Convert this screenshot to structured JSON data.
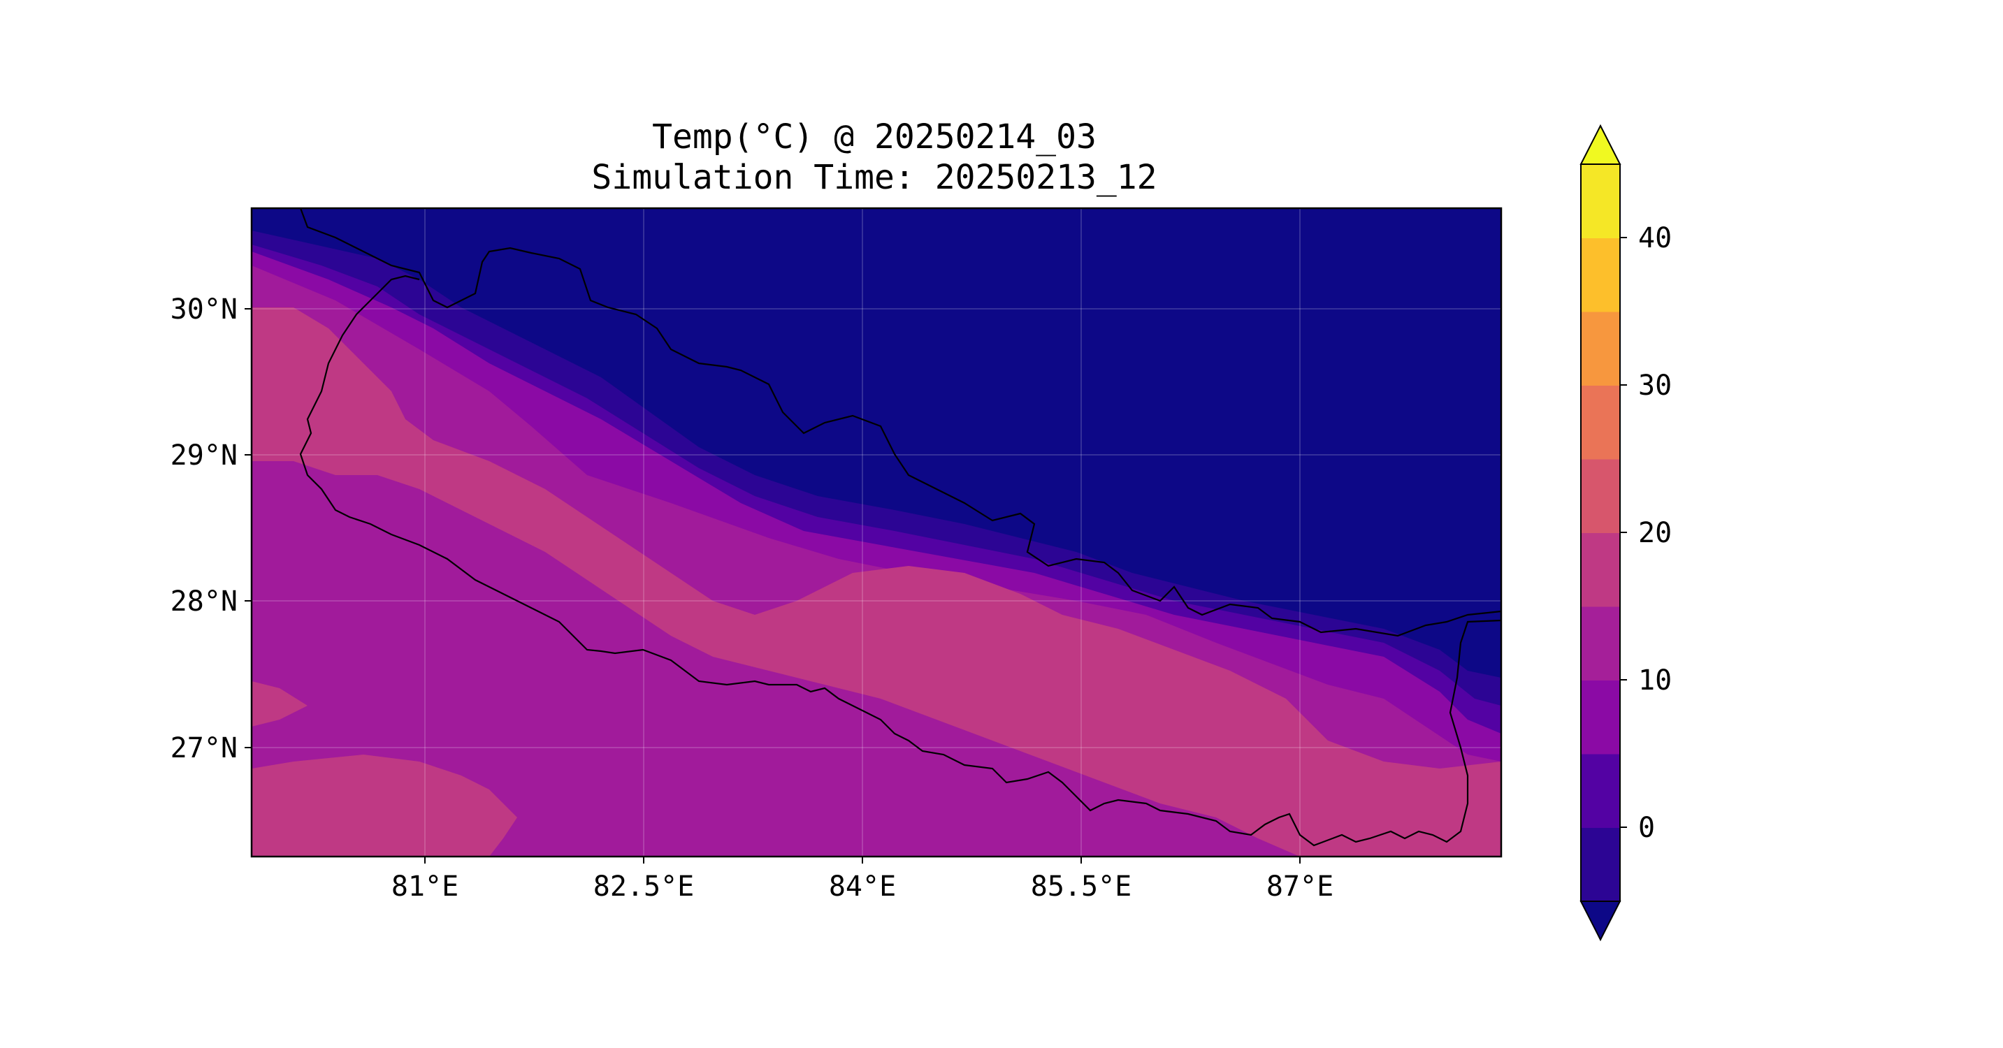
{
  "title": "Temp(°C) @ 20250214_03",
  "subtitle": "Simulation Time: 20250213_12",
  "map": {
    "variable": "Temp(°C)",
    "lon_ticks": [
      "81°E",
      "82.5°E",
      "84°E",
      "85.5°E",
      "87°E"
    ],
    "lat_ticks": [
      "30°N",
      "29°N",
      "28°N",
      "27°N"
    ],
    "gridlines": true,
    "colormap": "plasma",
    "country_outline": "Nepal"
  },
  "colorbar": {
    "tick_labels": [
      "40",
      "30",
      "20",
      "10",
      "0"
    ],
    "levels": [
      -5,
      0,
      5,
      10,
      15,
      20,
      25,
      30,
      35,
      40,
      45
    ],
    "extend": "both",
    "under_color": "#0d0887",
    "over_color": "#f0f921",
    "colors": [
      "#2c0594",
      "#5302a3",
      "#8b0aa5",
      "#a51f99",
      "#bf3984",
      "#d7566c",
      "#ea7457",
      "#f7973e",
      "#fdbf2b",
      "#f5e726"
    ]
  },
  "colors": {
    "cold": "#0d0887",
    "band_0": "#2c0594",
    "band_5": "#5302a3",
    "band_10": "#a11b9b",
    "band_15": "#bf3984",
    "band_20": "#d7566c"
  }
}
